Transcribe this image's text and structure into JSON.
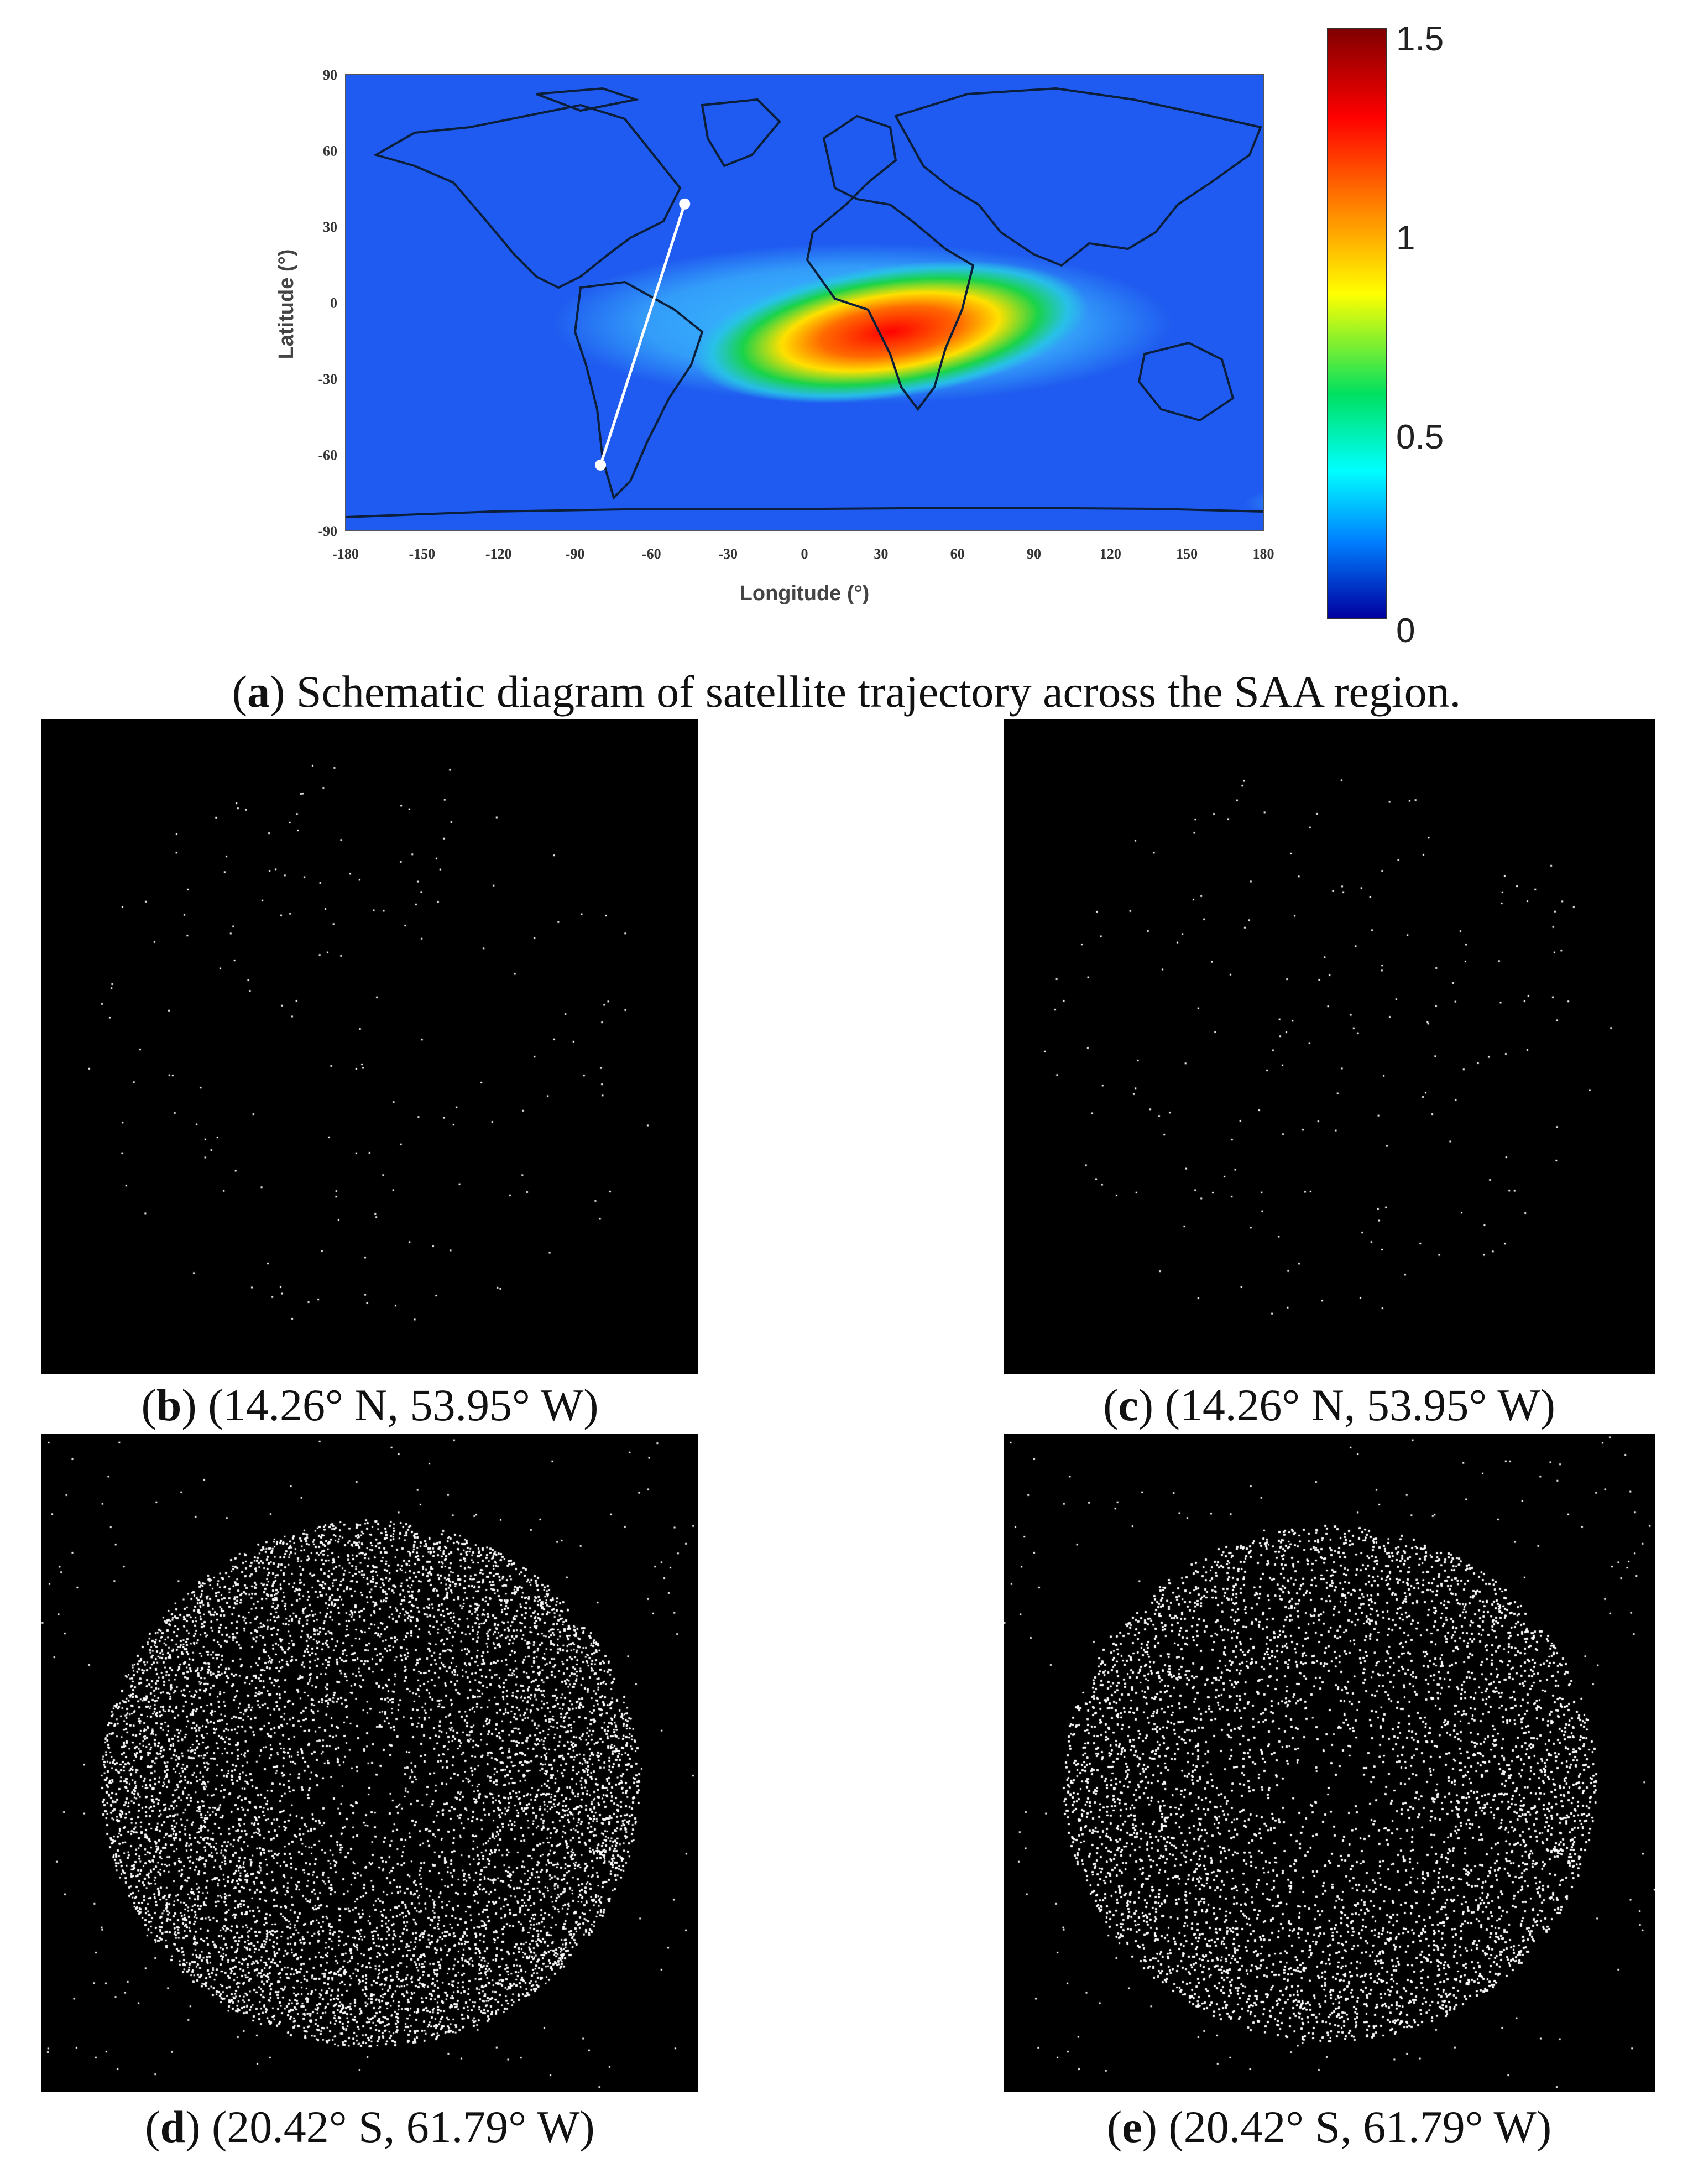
{
  "figure": {
    "panel_a": {
      "letter": "a",
      "caption": "Schematic diagram of satellite trajectory across the SAA region.",
      "map": {
        "xlabel": "Longitude (°)",
        "ylabel": "Latitude (°)",
        "x_ticks": [
          "-180",
          "-150",
          "-120",
          "-90",
          "-60",
          "-30",
          "0",
          "30",
          "60",
          "90",
          "120",
          "150",
          "180"
        ],
        "y_ticks": [
          "90",
          "60",
          "30",
          "0",
          "-30",
          "-60",
          "-90"
        ],
        "xlim": [
          -180,
          180
        ],
        "ylim": [
          -90,
          90
        ],
        "trajectory": {
          "start": {
            "lon": -47,
            "lat": 39
          },
          "end": {
            "lon": -80,
            "lat": -64
          }
        },
        "background_color": "#1f5bf0",
        "coast_color": "#0b1e3a",
        "trajectory_color": "#ffffff"
      },
      "colorbar": {
        "labels": [
          "1.5",
          "1",
          "0.5",
          "0"
        ],
        "values": [
          1.5,
          1,
          0.5,
          0
        ],
        "min": 0,
        "max": 1.5,
        "colormap": "jet"
      }
    },
    "panel_b": {
      "letter": "b",
      "caption": "(14.26° N, 53.95° W)"
    },
    "panel_c": {
      "letter": "c",
      "caption": "(14.26° N, 53.95° W)"
    },
    "panel_d": {
      "letter": "d",
      "caption": "(20.42° S, 61.79° W)"
    },
    "panel_e": {
      "letter": "e",
      "caption": "(20.42° S, 61.79° W)"
    }
  }
}
